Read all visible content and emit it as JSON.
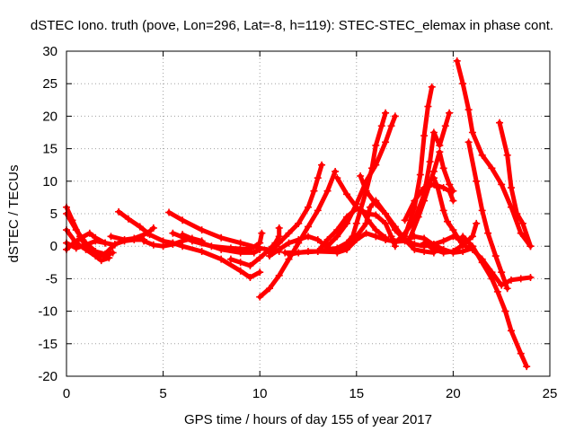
{
  "chart_data": {
    "type": "scatter",
    "title": "dSTEC Iono. truth (pove, Lon=296, Lat=-8, h=119): STEC-STEC_elemax in phase cont.",
    "xlabel": "GPS time / hours of day 155 of year 2017",
    "ylabel": "dSTEC  / TECUs",
    "xlim": [
      0,
      25
    ],
    "ylim": [
      -20,
      30
    ],
    "xticks": [
      0,
      5,
      10,
      15,
      20,
      25
    ],
    "yticks": [
      -20,
      -15,
      -10,
      -5,
      0,
      5,
      10,
      15,
      20,
      25,
      30
    ],
    "grid": true,
    "color": "#ff0000",
    "marker": "plus",
    "series": [
      {
        "points": [
          [
            0,
            6
          ],
          [
            0.3,
            4
          ],
          [
            0.7,
            1.5
          ],
          [
            1,
            0
          ],
          [
            1.5,
            -1.2
          ],
          [
            2,
            -1.5
          ],
          [
            2.4,
            -1
          ]
        ]
      },
      {
        "points": [
          [
            0,
            5
          ],
          [
            0.5,
            2.5
          ],
          [
            1,
            0.5
          ],
          [
            1.5,
            -0.8
          ],
          [
            2,
            -1.2
          ],
          [
            2.5,
            0.3
          ],
          [
            3,
            0.8
          ],
          [
            3.5,
            1
          ],
          [
            4,
            1
          ]
        ]
      },
      {
        "points": [
          [
            0,
            2.5
          ],
          [
            0.5,
            0.5
          ],
          [
            1,
            -0.5
          ],
          [
            1.5,
            -1.5
          ],
          [
            1.8,
            -2.2
          ],
          [
            2.2,
            -1.8
          ]
        ]
      },
      {
        "points": [
          [
            0,
            0.5
          ],
          [
            0.5,
            -0.3
          ],
          [
            1,
            0.2
          ],
          [
            1.5,
            0.8
          ],
          [
            2,
            0.5
          ],
          [
            2.5,
            0.2
          ]
        ]
      },
      {
        "points": [
          [
            0,
            -0.5
          ],
          [
            0.3,
            0.3
          ],
          [
            0.7,
            1.2
          ],
          [
            1.2,
            2
          ],
          [
            1.5,
            1.3
          ],
          [
            2,
            0.5
          ]
        ]
      },
      {
        "points": [
          [
            2.7,
            5.3
          ],
          [
            3.2,
            4.2
          ],
          [
            3.8,
            3
          ],
          [
            4.3,
            1.8
          ],
          [
            5,
            0.8
          ],
          [
            5.5,
            0.5
          ]
        ]
      },
      {
        "points": [
          [
            2.3,
            1.5
          ],
          [
            3,
            1
          ],
          [
            3.5,
            1.2
          ],
          [
            4.2,
            2
          ],
          [
            4.5,
            2.8
          ]
        ]
      },
      {
        "points": [
          [
            4,
            0.8
          ],
          [
            4.5,
            0.2
          ],
          [
            5,
            0
          ],
          [
            5.5,
            0.3
          ],
          [
            6,
            0.8
          ],
          [
            6.5,
            1.2
          ],
          [
            7,
            0.8
          ]
        ]
      },
      {
        "points": [
          [
            5.3,
            5.2
          ],
          [
            6,
            4
          ],
          [
            7,
            2.5
          ],
          [
            8,
            1.3
          ],
          [
            9,
            0.5
          ],
          [
            10,
            -0.3
          ],
          [
            11,
            -0.8
          ]
        ]
      },
      {
        "points": [
          [
            5.5,
            0.5
          ],
          [
            6,
            0
          ],
          [
            7,
            -0.8
          ],
          [
            8,
            -2
          ],
          [
            9,
            -3.8
          ],
          [
            9.5,
            -4.8
          ],
          [
            10,
            -4
          ]
        ]
      },
      {
        "points": [
          [
            5.5,
            2
          ],
          [
            6.5,
            0.8
          ],
          [
            7.5,
            0
          ],
          [
            8.5,
            -0.3
          ],
          [
            9.5,
            -0.5
          ],
          [
            10,
            0.5
          ],
          [
            10.1,
            2
          ]
        ]
      },
      {
        "points": [
          [
            6,
            1.8
          ],
          [
            7,
            0.5
          ],
          [
            8,
            -0.5
          ],
          [
            9,
            -1
          ],
          [
            9.7,
            -1
          ],
          [
            10,
            -0.5
          ]
        ]
      },
      {
        "points": [
          [
            8.5,
            -2
          ],
          [
            9,
            -2.5
          ],
          [
            9.5,
            -3
          ],
          [
            10,
            -1.8
          ],
          [
            10.5,
            -0.5
          ],
          [
            10.8,
            0.5
          ],
          [
            11,
            1.5
          ],
          [
            11,
            2.8
          ]
        ]
      },
      {
        "points": [
          [
            10,
            -7.8
          ],
          [
            10.5,
            -6.5
          ],
          [
            11,
            -4.5
          ],
          [
            11.5,
            -2
          ],
          [
            12,
            0.5
          ],
          [
            12.5,
            3
          ],
          [
            13,
            5.5
          ],
          [
            13.5,
            8.5
          ],
          [
            13.9,
            11.5
          ]
        ]
      },
      {
        "points": [
          [
            10.5,
            -1
          ],
          [
            11,
            0.5
          ],
          [
            11.5,
            2
          ],
          [
            12,
            3.5
          ],
          [
            12.5,
            6
          ],
          [
            12.8,
            8.5
          ],
          [
            13,
            10.5
          ],
          [
            13.2,
            12.5
          ]
        ]
      },
      {
        "points": [
          [
            10.5,
            -1.5
          ],
          [
            11,
            -0.5
          ],
          [
            11.5,
            0.5
          ],
          [
            12,
            1
          ],
          [
            12.5,
            1.5
          ],
          [
            13,
            1
          ],
          [
            13.5,
            -0.2
          ],
          [
            14,
            -1
          ],
          [
            14.5,
            -0.5
          ],
          [
            15,
            1
          ],
          [
            15.5,
            2
          ],
          [
            16,
            1.5
          ],
          [
            16.5,
            1
          ],
          [
            17,
            0.7
          ],
          [
            17.5,
            0.8
          ],
          [
            18,
            1.5
          ],
          [
            18.5,
            1.2
          ],
          [
            19,
            0.2
          ],
          [
            19.5,
            -0.5
          ],
          [
            20,
            -1
          ],
          [
            20.5,
            -0.8
          ],
          [
            21,
            -0.3
          ]
        ]
      },
      {
        "points": [
          [
            11.3,
            -1
          ],
          [
            12,
            -1
          ],
          [
            13,
            -0.8
          ],
          [
            14,
            -0.9
          ],
          [
            14.5,
            0
          ],
          [
            15,
            1.5
          ],
          [
            15.5,
            3.5
          ],
          [
            15.7,
            6
          ],
          [
            16,
            7
          ],
          [
            16.5,
            5
          ],
          [
            17,
            2.5
          ],
          [
            17.5,
            1
          ],
          [
            18,
            0.3
          ],
          [
            18.5,
            0
          ],
          [
            19,
            0.3
          ],
          [
            19.5,
            0.8
          ],
          [
            20,
            1.5
          ],
          [
            20.5,
            1
          ]
        ]
      },
      {
        "points": [
          [
            11.5,
            -1.3
          ],
          [
            12,
            -1
          ],
          [
            12.5,
            -0.8
          ],
          [
            13,
            -0.8
          ],
          [
            13.5,
            -0.5
          ],
          [
            14,
            -0.3
          ],
          [
            14.5,
            0.5
          ],
          [
            14.8,
            1.5
          ],
          [
            15,
            3.5
          ],
          [
            15.5,
            8.5
          ],
          [
            15.8,
            12
          ],
          [
            16,
            15.5
          ],
          [
            16.3,
            18.5
          ],
          [
            16.5,
            20.5
          ]
        ]
      },
      {
        "points": [
          [
            13,
            -0.8
          ],
          [
            13.5,
            1
          ],
          [
            14,
            2.5
          ],
          [
            14.5,
            4.5
          ],
          [
            15,
            5.8
          ],
          [
            15.3,
            5.5
          ],
          [
            15.6,
            4
          ],
          [
            16,
            2.5
          ],
          [
            16.5,
            1.3
          ]
        ]
      },
      {
        "points": [
          [
            13.5,
            0
          ],
          [
            14,
            1.5
          ],
          [
            14.5,
            3.5
          ],
          [
            15,
            6.5
          ],
          [
            15.5,
            10
          ],
          [
            16,
            12.5
          ],
          [
            16.5,
            16
          ],
          [
            16.8,
            18.5
          ],
          [
            17,
            20
          ]
        ]
      },
      {
        "points": [
          [
            14,
            10.5
          ],
          [
            14.5,
            8
          ],
          [
            15,
            6
          ],
          [
            15.5,
            5
          ],
          [
            16,
            4.8
          ],
          [
            16.5,
            3.5
          ],
          [
            16.8,
            1.5
          ],
          [
            17,
            0
          ]
        ]
      },
      {
        "points": [
          [
            15.2,
            10.8
          ],
          [
            15.5,
            8.5
          ],
          [
            16,
            6.5
          ],
          [
            16.5,
            5
          ],
          [
            17,
            3
          ],
          [
            17.5,
            1
          ],
          [
            18,
            -0.5
          ],
          [
            18.5,
            -0.8
          ],
          [
            19,
            -1
          ]
        ]
      },
      {
        "points": [
          [
            17,
            0.5
          ],
          [
            17.5,
            2
          ],
          [
            18,
            4
          ],
          [
            18.5,
            8
          ],
          [
            18.8,
            13
          ],
          [
            19,
            17.5
          ],
          [
            19.3,
            15.5
          ],
          [
            19.6,
            18.5
          ],
          [
            19.8,
            20.5
          ]
        ]
      },
      {
        "points": [
          [
            17.5,
            1.5
          ],
          [
            18,
            6
          ],
          [
            18.3,
            11
          ],
          [
            18.5,
            17
          ],
          [
            18.7,
            21.5
          ],
          [
            18.9,
            24.5
          ]
        ]
      },
      {
        "points": [
          [
            17.5,
            4
          ],
          [
            18,
            7
          ],
          [
            18.5,
            9
          ],
          [
            19,
            9.5
          ],
          [
            19.5,
            9
          ],
          [
            19.8,
            8.5
          ],
          [
            20,
            7
          ]
        ]
      },
      {
        "points": [
          [
            17.8,
            1.5
          ],
          [
            18.2,
            4.5
          ],
          [
            18.5,
            7
          ],
          [
            19,
            11.5
          ],
          [
            19.3,
            14.5
          ],
          [
            19.5,
            12
          ],
          [
            19.8,
            9.5
          ],
          [
            20,
            8.5
          ]
        ]
      },
      {
        "points": [
          [
            19,
            10.5
          ],
          [
            19.2,
            9
          ],
          [
            19.5,
            5.5
          ],
          [
            19.7,
            3.8
          ],
          [
            20,
            2.5
          ],
          [
            20.3,
            1
          ],
          [
            20.5,
            0.2
          ],
          [
            21,
            -0.5
          ],
          [
            21.5,
            -2
          ],
          [
            22,
            -4
          ],
          [
            22.5,
            -6
          ],
          [
            23,
            -5.2
          ],
          [
            23.5,
            -5
          ],
          [
            24,
            -4.8
          ]
        ]
      },
      {
        "points": [
          [
            18.5,
            0.5
          ],
          [
            19,
            -0.5
          ],
          [
            19.5,
            -1
          ],
          [
            20,
            -0.8
          ],
          [
            20.5,
            0.2
          ],
          [
            21,
            1.5
          ],
          [
            21.2,
            3.5
          ]
        ]
      },
      {
        "points": [
          [
            20.2,
            28.5
          ],
          [
            20.5,
            25
          ],
          [
            20.8,
            21
          ],
          [
            21,
            17.5
          ],
          [
            21.5,
            14
          ],
          [
            22,
            12
          ],
          [
            22.5,
            9.5
          ],
          [
            23,
            6
          ],
          [
            23.5,
            2
          ],
          [
            24,
            0
          ]
        ]
      },
      {
        "points": [
          [
            20.5,
            1.5
          ],
          [
            21,
            0
          ],
          [
            21.5,
            -2.5
          ],
          [
            22,
            -5
          ],
          [
            22.3,
            -7
          ],
          [
            22.7,
            -10
          ],
          [
            23,
            -13
          ],
          [
            23.5,
            -16.5
          ],
          [
            23.8,
            -18.5
          ]
        ]
      },
      {
        "points": [
          [
            20.8,
            16
          ],
          [
            21.2,
            10
          ],
          [
            21.5,
            5.5
          ],
          [
            21.8,
            2
          ],
          [
            22.2,
            -1.5
          ],
          [
            22.5,
            -4
          ],
          [
            22.8,
            -6.5
          ]
        ]
      },
      {
        "points": [
          [
            22.4,
            19
          ],
          [
            22.8,
            14
          ],
          [
            23,
            9
          ],
          [
            23.3,
            5
          ],
          [
            23.6,
            3.5
          ],
          [
            24,
            0
          ]
        ]
      }
    ]
  }
}
